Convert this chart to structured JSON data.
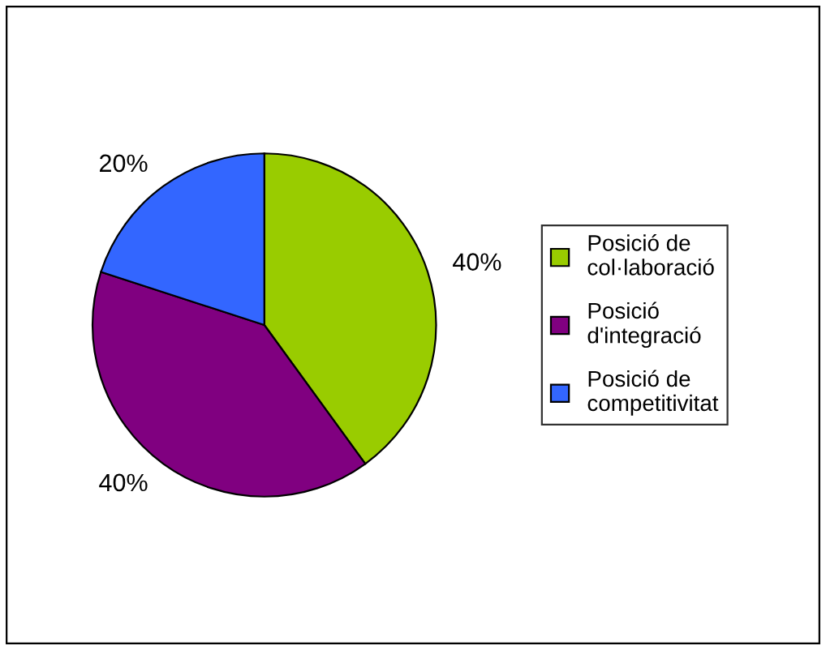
{
  "chart_data": {
    "type": "pie",
    "categories": [
      "Posició de\ncol·laboració",
      "Posició\nd'integració",
      "Posició de\ncompetitivitat"
    ],
    "values": [
      40,
      40,
      20
    ],
    "value_labels": [
      "40%",
      "40%",
      "20%"
    ],
    "colors": [
      "#99cc00",
      "#800080",
      "#3366ff"
    ],
    "legend": "right"
  }
}
